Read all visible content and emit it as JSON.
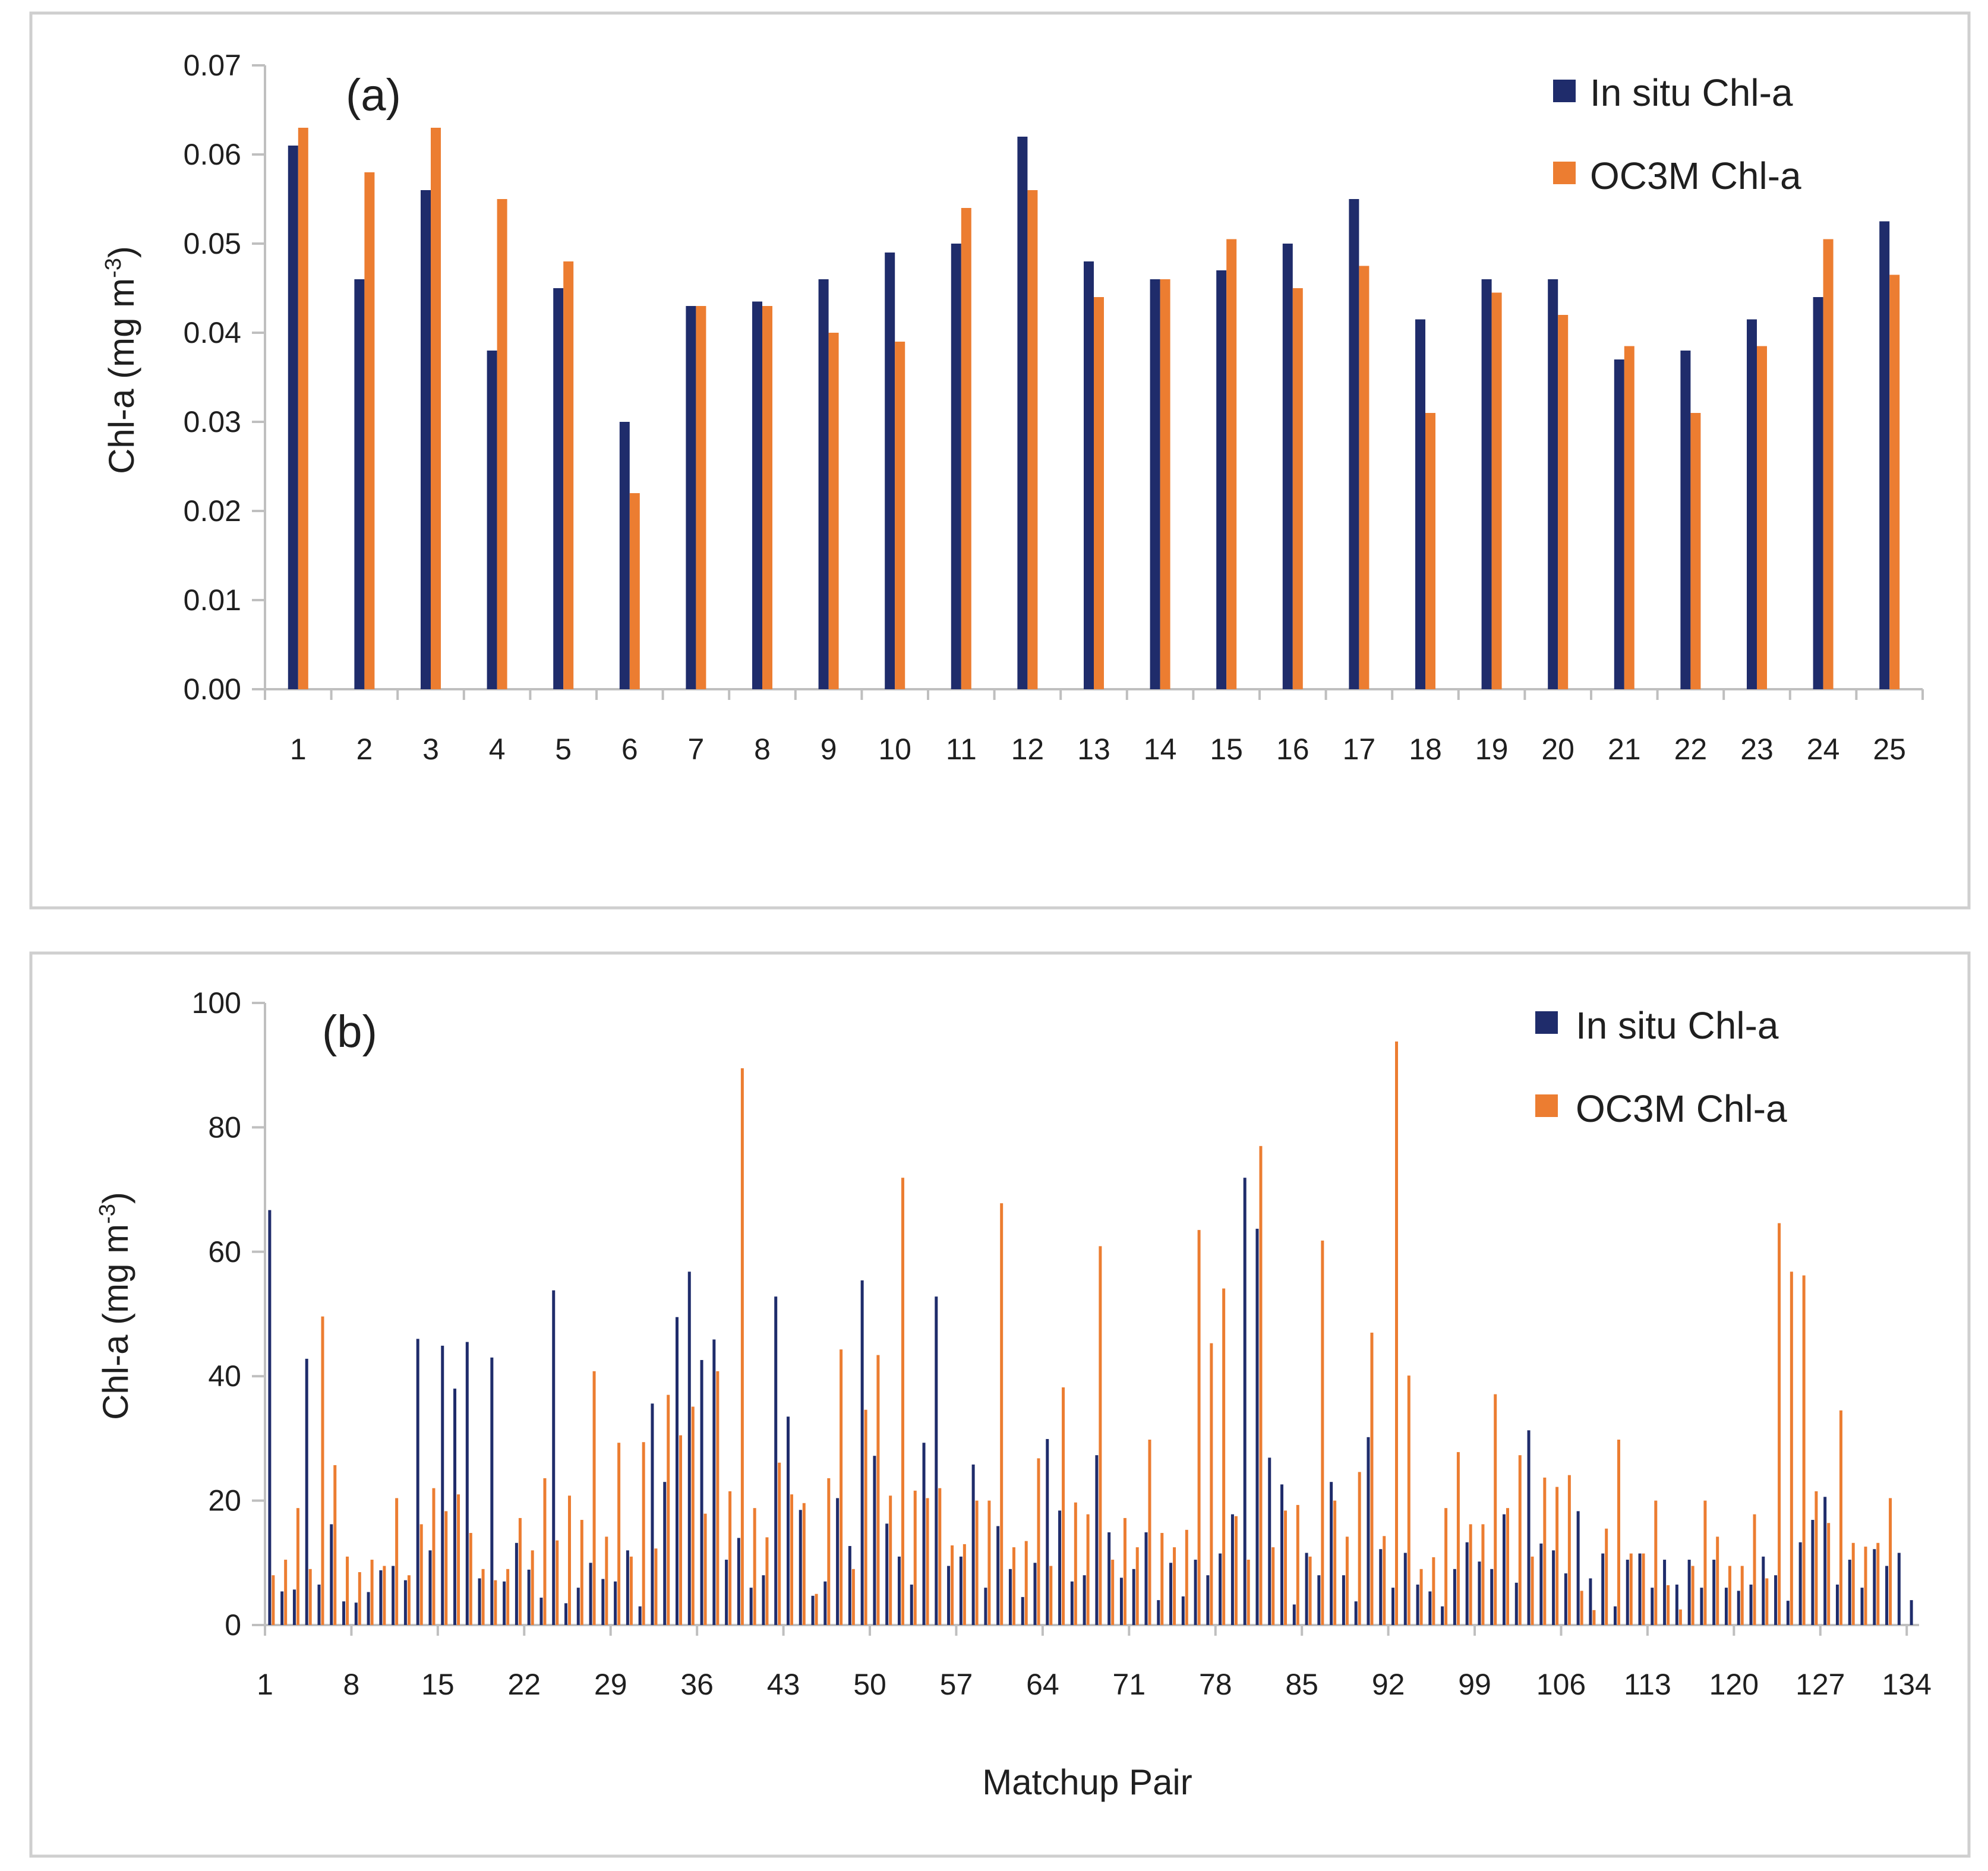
{
  "colors": {
    "in_situ": "#1f2c6b",
    "oc3m": "#ec7d31",
    "axis": "#bfbfbf",
    "frame": "#cfcfcf"
  },
  "chart_data": [
    {
      "type": "bar",
      "panel_label": "(a)",
      "ylabel_main": "Chl-a (mg m",
      "ylabel_sup": "-3",
      "ylabel_close": ")",
      "xlabel": "",
      "ylim": [
        0,
        0.07
      ],
      "yticks": [
        "0.00",
        "0.01",
        "0.02",
        "0.03",
        "0.04",
        "0.05",
        "0.06",
        "0.07"
      ],
      "categories": [
        "1",
        "2",
        "3",
        "4",
        "5",
        "6",
        "7",
        "8",
        "9",
        "10",
        "11",
        "12",
        "13",
        "14",
        "15",
        "16",
        "17",
        "18",
        "19",
        "20",
        "21",
        "22",
        "23",
        "24",
        "25"
      ],
      "tick_labels": [
        "1",
        "2",
        "3",
        "4",
        "5",
        "6",
        "7",
        "8",
        "9",
        "10",
        "11",
        "12",
        "13",
        "14",
        "15",
        "16",
        "17",
        "18",
        "19",
        "20",
        "21",
        "22",
        "23",
        "24",
        "25"
      ],
      "legend": [
        "In situ Chl-a",
        "OC3M Chl-a"
      ],
      "series": [
        {
          "name": "In situ Chl-a",
          "values": [
            0.061,
            0.046,
            0.056,
            0.038,
            0.045,
            0.03,
            0.043,
            0.0435,
            0.046,
            0.049,
            0.05,
            0.062,
            0.048,
            0.046,
            0.047,
            0.05,
            0.055,
            0.0415,
            0.046,
            0.046,
            0.037,
            0.038,
            0.0415,
            0.044,
            0.0525
          ]
        },
        {
          "name": "OC3M Chl-a",
          "values": [
            0.063,
            0.058,
            0.063,
            0.055,
            0.048,
            0.022,
            0.043,
            0.043,
            0.04,
            0.039,
            0.054,
            0.056,
            0.044,
            0.046,
            0.0505,
            0.045,
            0.0475,
            0.031,
            0.0445,
            0.042,
            0.0385,
            0.031,
            0.0385,
            0.0505,
            0.0465
          ]
        }
      ]
    },
    {
      "type": "bar",
      "panel_label": "(b)",
      "ylabel_main": "Chl-a (mg m",
      "ylabel_sup": "-3",
      "ylabel_close": ")",
      "xlabel": "Matchup Pair",
      "ylim": [
        0,
        100
      ],
      "yticks": [
        "0",
        "20",
        "40",
        "60",
        "80",
        "100"
      ],
      "tick_labels": [
        "1",
        "8",
        "15",
        "22",
        "29",
        "36",
        "43",
        "50",
        "57",
        "64",
        "71",
        "78",
        "85",
        "92",
        "99",
        "106",
        "113",
        "120",
        "127",
        "134"
      ],
      "legend": [
        "In situ Chl-a",
        "OC3M Chl-a"
      ],
      "series": [
        {
          "name": "In situ Chl-a",
          "values": [
            66.7,
            5.4,
            5.7,
            42.8,
            6.5,
            16.2,
            3.8,
            3.6,
            5.3,
            8.8,
            9.5,
            7.2,
            46,
            12,
            44.9,
            38,
            45.5,
            7.5,
            43,
            7,
            13.2,
            8.9,
            4.4,
            53.8,
            3.5,
            6,
            10,
            7.4,
            7,
            12,
            3,
            35.6,
            23,
            49.5,
            56.8,
            42.6,
            45.9,
            10.5,
            14,
            6,
            8,
            52.8,
            33.5,
            18.5,
            4.7,
            7,
            20.4,
            12.7,
            55.4,
            27.2,
            16.3,
            11,
            6.5,
            29.3,
            52.8,
            9.5,
            11,
            25.8,
            6,
            15.9,
            9,
            4.5,
            10,
            29.9,
            18.4,
            7,
            8,
            27.3,
            14.9,
            7.6,
            9,
            14.9,
            4,
            10,
            4.6,
            10.5,
            8,
            11.5,
            17.8,
            71.9,
            63.7,
            26.9,
            22.6,
            3.3,
            11.6,
            8,
            23,
            8,
            3.8,
            30.2,
            12.2,
            6,
            11.6,
            6.5,
            5.4,
            3,
            9,
            13.3,
            10.2,
            9,
            17.8,
            6.8,
            31.3,
            13.1,
            12,
            8.3,
            18.3,
            7.5,
            11.5,
            3,
            10.5,
            11.5,
            6,
            10.5,
            6.5,
            10.5,
            6,
            10.5,
            6,
            5.5,
            6.5,
            11,
            8,
            3.9,
            13.3,
            16.9,
            20.6,
            6.5,
            10.5,
            6,
            12.2,
            9.5,
            11.6,
            4
          ]
        },
        {
          "name": "OC3M Chl-a",
          "values": [
            8,
            10.5,
            18.8,
            9,
            49.6,
            25.7,
            11,
            8.5,
            10.5,
            9.5,
            20.4,
            8,
            16.2,
            22,
            18.3,
            21,
            14.8,
            9,
            7.2,
            9,
            17.2,
            12,
            23.6,
            13.6,
            20.8,
            16.9,
            40.8,
            14.2,
            29.3,
            11,
            29.4,
            12.3,
            37,
            30.5,
            35.1,
            17.9,
            40.8,
            21.5,
            89.5,
            18.8,
            14.1,
            26.1,
            21,
            19.6,
            5,
            23.6,
            44.3,
            9,
            34.6,
            43.4,
            20.8,
            71.9,
            21.6,
            20.4,
            22,
            12.8,
            13,
            20,
            20,
            67.8,
            12.5,
            13.5,
            26.8,
            9.5,
            38.2,
            19.7,
            17.8,
            60.9,
            10.5,
            17.2,
            12.5,
            29.8,
            14.8,
            12.5,
            15.3,
            63.5,
            45.3,
            54.1,
            17.5,
            10.5,
            77,
            12.5,
            18.4,
            19.3,
            11,
            61.8,
            20,
            14.2,
            24.6,
            47,
            14.3,
            93.8,
            40.1,
            9,
            10.9,
            18.8,
            27.8,
            16.2,
            16.2,
            37.1,
            18.8,
            27.3,
            11,
            23.7,
            22.2,
            24.1,
            5.5,
            2.4,
            15.5,
            29.8,
            11.5,
            11.5,
            20,
            6.4,
            2.5,
            9.5,
            20,
            14.2,
            9.5,
            9.5,
            17.8,
            7.5,
            64.6,
            56.8,
            56.2,
            21.5,
            16.4,
            34.5,
            13.2,
            12.6,
            13.2,
            20.4
          ]
        }
      ]
    }
  ]
}
